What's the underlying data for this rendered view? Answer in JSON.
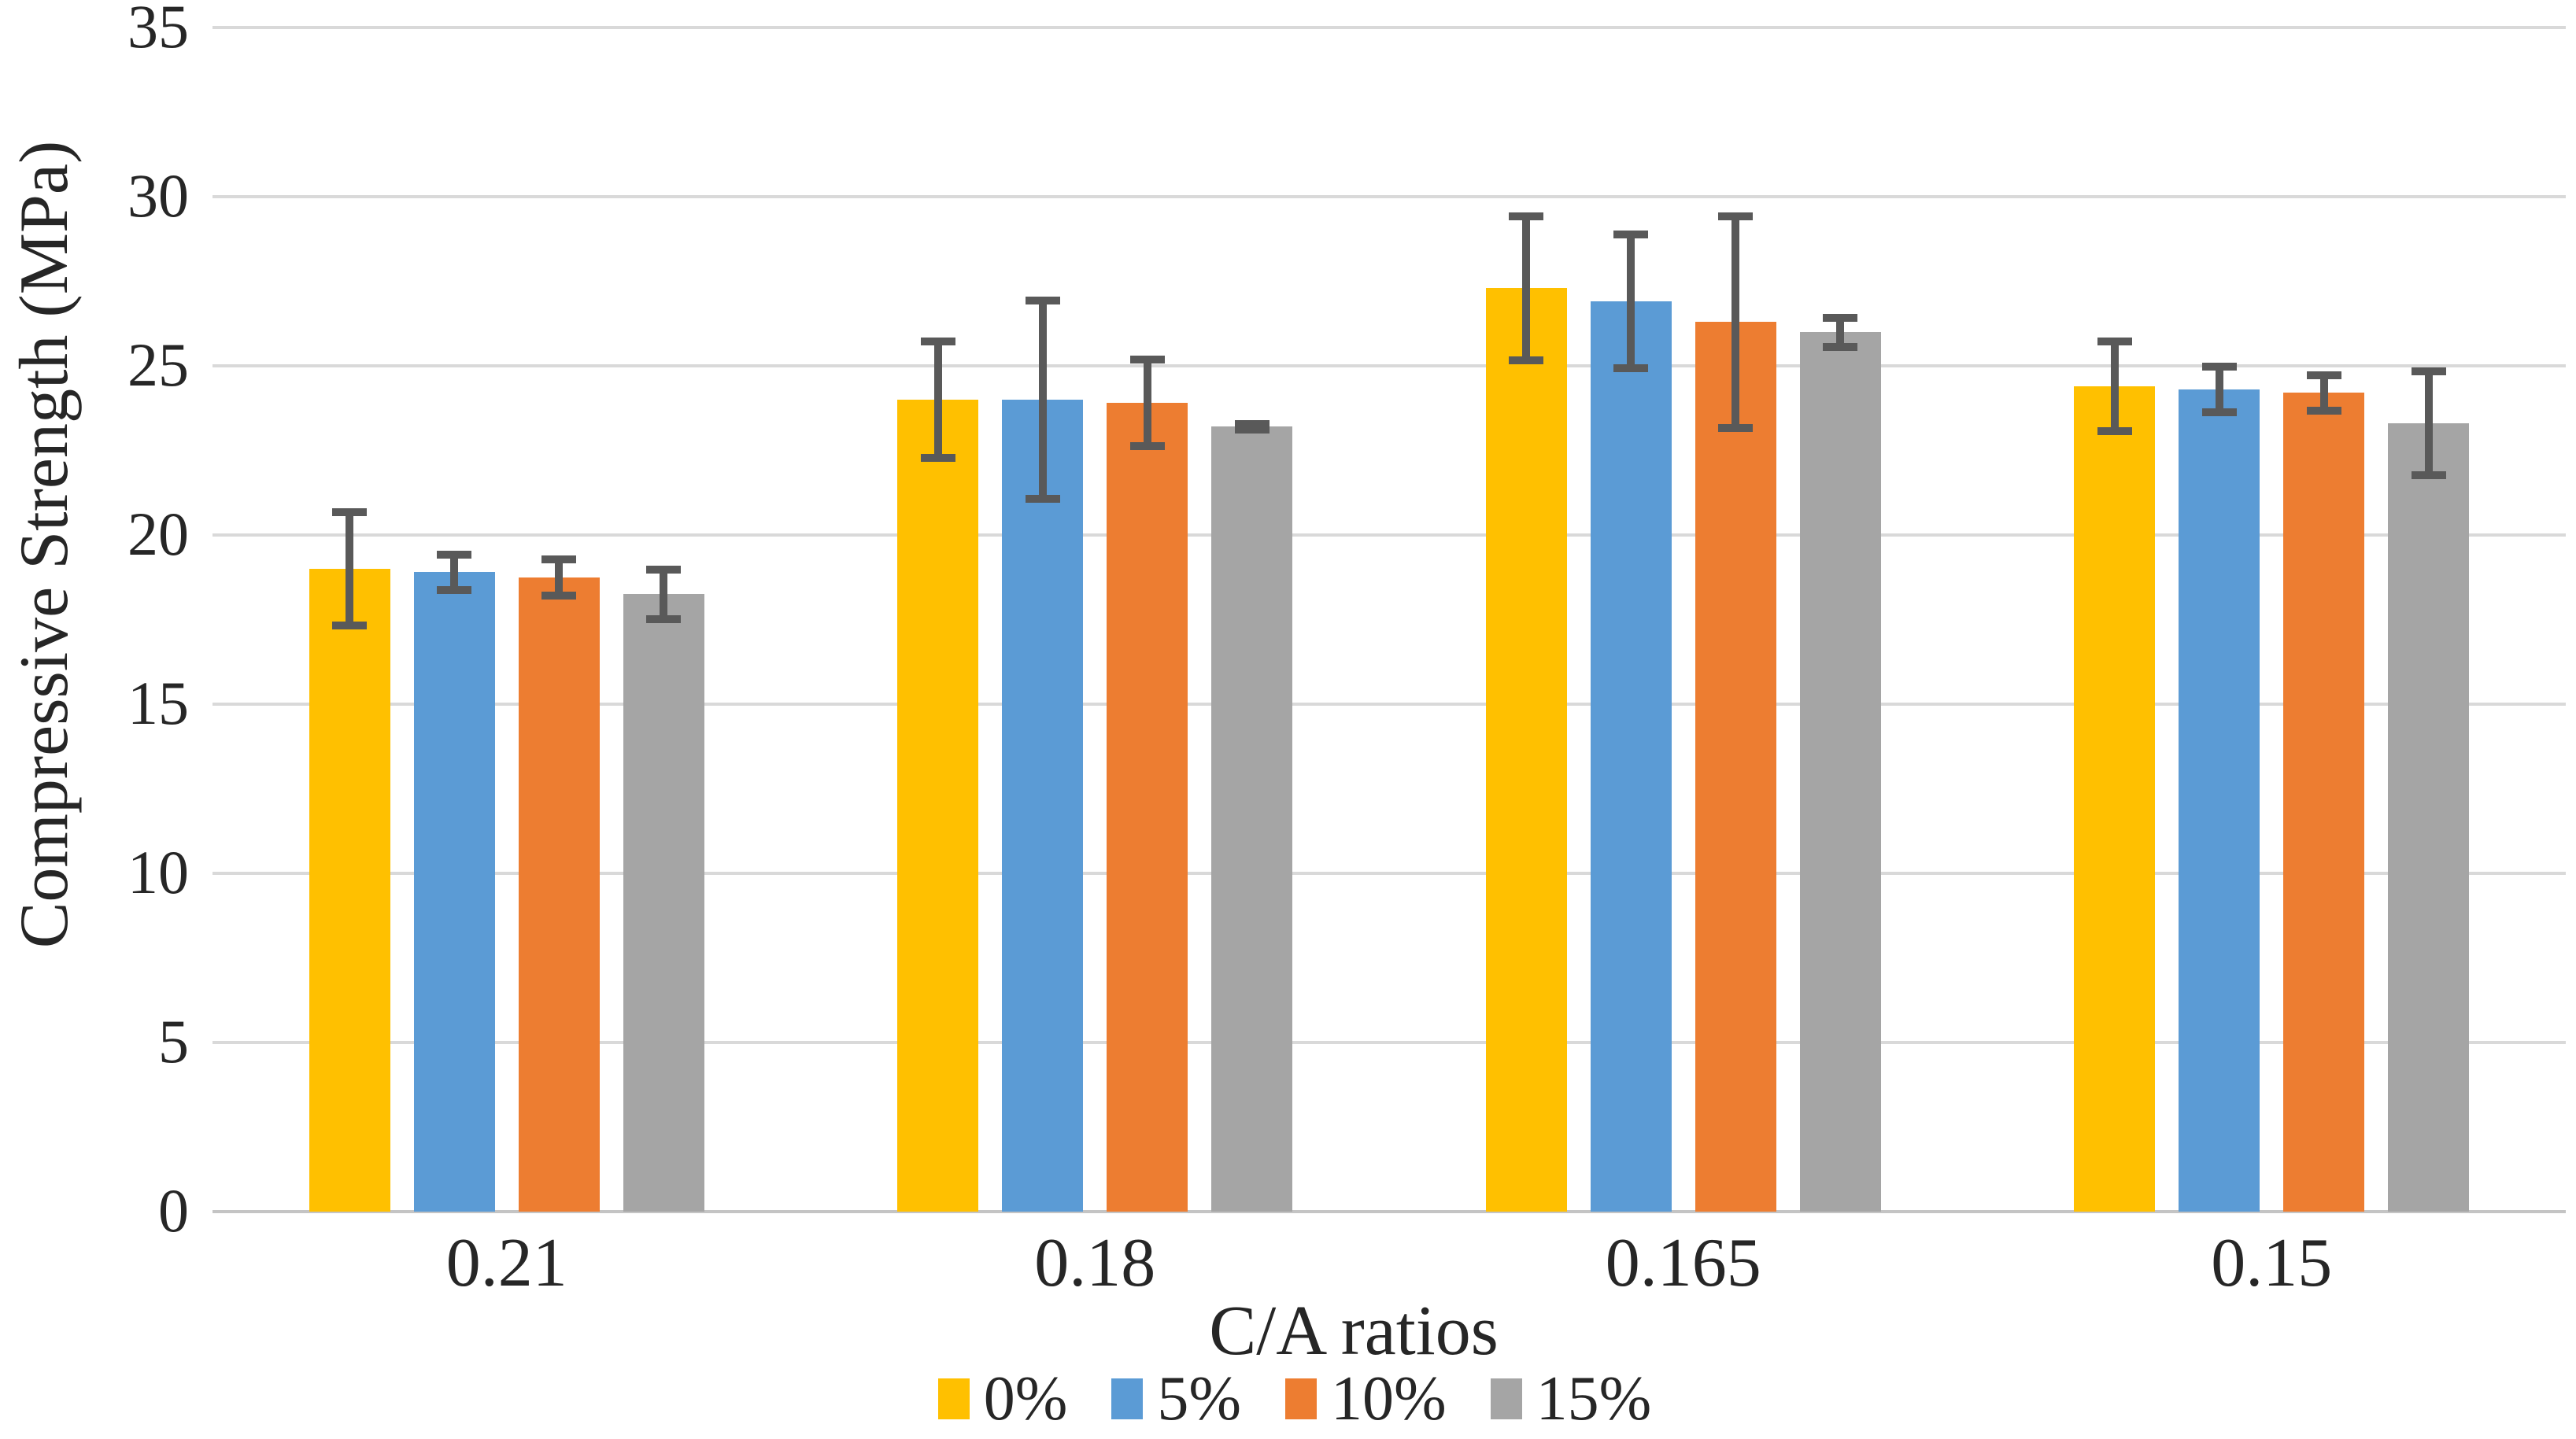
{
  "chart_data": {
    "type": "bar",
    "xlabel": "C/A ratios",
    "ylabel": "Compressive Strength (MPa)",
    "ylim": [
      0,
      35
    ],
    "yticks": [
      0,
      5,
      10,
      15,
      20,
      25,
      30,
      35
    ],
    "grid": true,
    "legend_position": "bottom",
    "categories": [
      "0.21",
      "0.18",
      "0.165",
      "0.15"
    ],
    "series": [
      {
        "name": "0%",
        "color": "#FFC000",
        "values": [
          19.0,
          24.0,
          27.3,
          24.4
        ],
        "errors": [
          1.75,
          1.8,
          2.2,
          1.4
        ]
      },
      {
        "name": "5%",
        "color": "#5B9BD5",
        "values": [
          18.9,
          24.0,
          26.9,
          24.3
        ],
        "errors": [
          0.6,
          3.0,
          2.05,
          0.75
        ]
      },
      {
        "name": "10%",
        "color": "#ED7D31",
        "values": [
          18.75,
          23.9,
          26.3,
          24.2
        ],
        "errors": [
          0.6,
          1.35,
          3.2,
          0.6
        ]
      },
      {
        "name": "15%",
        "color": "#A5A5A5",
        "values": [
          18.25,
          23.2,
          26.0,
          23.3
        ],
        "errors": [
          0.8,
          0.15,
          0.5,
          1.6
        ]
      }
    ],
    "colors": {
      "gridline": "#D9D9D9",
      "axis_line": "#C4C4C4",
      "error_bar": "#595959",
      "text": "#262626",
      "background": "#FFFFFF"
    }
  }
}
